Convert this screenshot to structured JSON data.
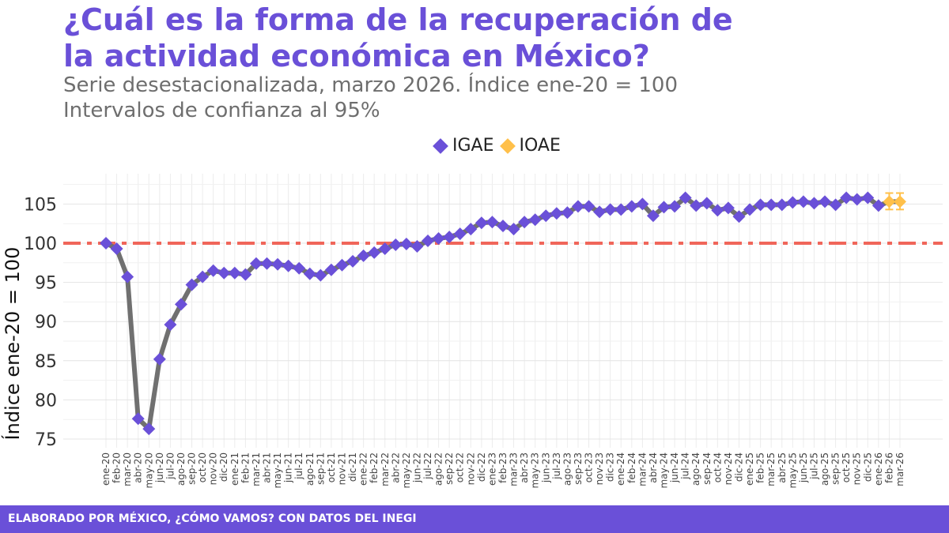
{
  "title_line1": "¿Cuál es la forma de la recuperación de",
  "title_line2": "la actividad económica en México?",
  "subtitle_line1": "Serie desestacionalizada, marzo 2026. Índice ene-20 = 100",
  "subtitle_line2": "Intervalos de confianza al 95%",
  "footer": "ELABORADO POR MÉXICO, ¿CÓMO VAMOS? CON DATOS DEL INEGI",
  "colors": {
    "igae": "#6a50d8",
    "ioae": "#ffc04a",
    "line": "#707070",
    "reference": "#f0665a"
  },
  "chart_data": {
    "type": "line",
    "ylabel": "Índice ene-20 = 100",
    "ylim": [
      74,
      108
    ],
    "yticks": [
      75,
      80,
      85,
      90,
      95,
      100,
      105
    ],
    "reference_line": 100,
    "legend": {
      "position": "top"
    },
    "grid": true,
    "categories": [
      "ene-20",
      "feb-20",
      "mar-20",
      "abr-20",
      "may-20",
      "jun-20",
      "jul-20",
      "ago-20",
      "sep-20",
      "oct-20",
      "nov-20",
      "dic-20",
      "ene-21",
      "feb-21",
      "mar-21",
      "abr-21",
      "may-21",
      "jun-21",
      "jul-21",
      "ago-21",
      "sep-21",
      "oct-21",
      "nov-21",
      "dic-21",
      "ene-22",
      "feb-22",
      "mar-22",
      "abr-22",
      "may-22",
      "jun-22",
      "jul-22",
      "ago-22",
      "sep-22",
      "oct-22",
      "nov-22",
      "dic-22",
      "ene-23",
      "feb-23",
      "mar-23",
      "abr-23",
      "may-23",
      "jun-23",
      "jul-23",
      "ago-23",
      "sep-23",
      "oct-23",
      "nov-23",
      "dic-23",
      "ene-24",
      "feb-24",
      "mar-24",
      "abr-24",
      "may-24",
      "jun-24",
      "jul-24",
      "ago-24",
      "sep-24",
      "oct-24",
      "nov-24",
      "dic-24",
      "ene-25",
      "feb-25",
      "mar-25",
      "abr-25",
      "may-25",
      "jun-25",
      "jul-25",
      "ago-25",
      "sep-25",
      "oct-25",
      "nov-25",
      "dic-25",
      "ene-26",
      "feb-26",
      "mar-26"
    ],
    "series": [
      {
        "name": "IGAE",
        "values": [
          100.0,
          99.3,
          95.7,
          77.6,
          76.3,
          85.2,
          89.6,
          92.2,
          94.7,
          95.7,
          96.5,
          96.2,
          96.2,
          96.0,
          97.4,
          97.4,
          97.3,
          97.1,
          96.8,
          96.1,
          95.9,
          96.6,
          97.2,
          97.7,
          98.4,
          98.8,
          99.3,
          99.8,
          99.9,
          99.6,
          100.3,
          100.6,
          100.8,
          101.2,
          101.8,
          102.6,
          102.7,
          102.2,
          101.8,
          102.7,
          103.0,
          103.5,
          103.8,
          103.9,
          104.7,
          104.7,
          104.0,
          104.3,
          104.3,
          104.7,
          105.0,
          103.5,
          104.6,
          104.7,
          105.8,
          104.8,
          105.1,
          104.2,
          104.5,
          103.4,
          104.3,
          104.9,
          104.9,
          104.9,
          105.2,
          105.3,
          105.1,
          105.3,
          104.9,
          105.8,
          105.6,
          105.8,
          104.8,
          null,
          null
        ]
      },
      {
        "name": "IOAE",
        "values": [
          null,
          null,
          null,
          null,
          null,
          null,
          null,
          null,
          null,
          null,
          null,
          null,
          null,
          null,
          null,
          null,
          null,
          null,
          null,
          null,
          null,
          null,
          null,
          null,
          null,
          null,
          null,
          null,
          null,
          null,
          null,
          null,
          null,
          null,
          null,
          null,
          null,
          null,
          null,
          null,
          null,
          null,
          null,
          null,
          null,
          null,
          null,
          null,
          null,
          null,
          null,
          null,
          null,
          null,
          null,
          null,
          null,
          null,
          null,
          null,
          null,
          null,
          null,
          null,
          null,
          null,
          null,
          null,
          null,
          null,
          null,
          null,
          null,
          105.3,
          105.3
        ],
        "ci_low": [
          104.3,
          104.3
        ],
        "ci_high": [
          106.4,
          106.4
        ]
      }
    ]
  }
}
